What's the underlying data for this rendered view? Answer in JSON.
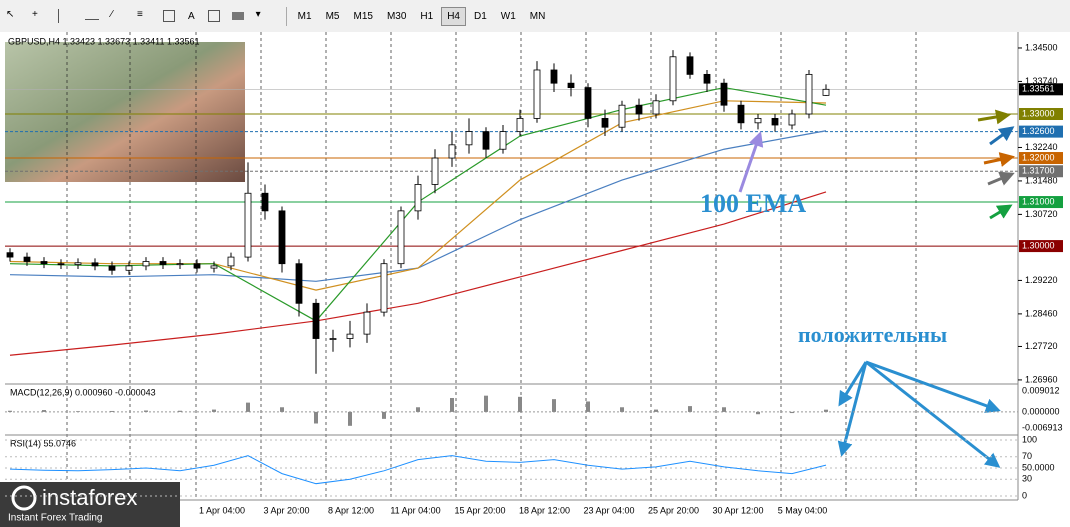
{
  "toolbar": {
    "text_tool": "A",
    "periods": [
      "M1",
      "M5",
      "M15",
      "M30",
      "H1",
      "H4",
      "D1",
      "W1",
      "MN"
    ],
    "active_period": "H4"
  },
  "chart_data": {
    "type": "candlestick",
    "title": "GBPUSD,H4  1.33423 1.33673 1.33411 1.33561",
    "candles": {
      "open": [
        1.2985,
        1.2975,
        1.2965,
        1.296,
        1.2958,
        1.2962,
        1.2955,
        1.2945,
        1.2955,
        1.2965,
        1.2958,
        1.296,
        1.295,
        1.2955,
        1.2975,
        1.312,
        1.308,
        1.296,
        1.287,
        1.279,
        1.279,
        1.28,
        1.285,
        1.296,
        1.308,
        1.314,
        1.32,
        1.323,
        1.326,
        1.322,
        1.326,
        1.329,
        1.34,
        1.337,
        1.336,
        1.329,
        1.327,
        1.332,
        1.33,
        1.333,
        1.343,
        1.339,
        1.337,
        1.332,
        1.328,
        1.329,
        1.3275,
        1.33,
        1.33423
      ],
      "high": [
        1.2995,
        1.2985,
        1.2975,
        1.297,
        1.2972,
        1.2972,
        1.2965,
        1.2965,
        1.2975,
        1.2975,
        1.297,
        1.297,
        1.2965,
        1.2985,
        1.319,
        1.314,
        1.309,
        1.297,
        1.288,
        1.281,
        1.283,
        1.287,
        1.297,
        1.309,
        1.316,
        1.322,
        1.326,
        1.329,
        1.327,
        1.3275,
        1.331,
        1.342,
        1.3415,
        1.339,
        1.337,
        1.331,
        1.333,
        1.3335,
        1.3345,
        1.3445,
        1.344,
        1.34,
        1.338,
        1.333,
        1.33,
        1.33,
        1.331,
        1.34,
        1.33673
      ],
      "low": [
        1.2965,
        1.2955,
        1.295,
        1.2948,
        1.2948,
        1.2945,
        1.2935,
        1.2935,
        1.2945,
        1.2948,
        1.2948,
        1.294,
        1.294,
        1.2945,
        1.2965,
        1.306,
        1.294,
        1.284,
        1.271,
        1.276,
        1.277,
        1.278,
        1.284,
        1.295,
        1.306,
        1.312,
        1.318,
        1.321,
        1.32,
        1.321,
        1.325,
        1.328,
        1.335,
        1.334,
        1.327,
        1.325,
        1.326,
        1.3285,
        1.329,
        1.332,
        1.338,
        1.335,
        1.3305,
        1.3265,
        1.3265,
        1.326,
        1.3265,
        1.329,
        1.33411
      ],
      "close": [
        1.2975,
        1.2965,
        1.296,
        1.2958,
        1.2962,
        1.2955,
        1.2945,
        1.2955,
        1.2965,
        1.2958,
        1.296,
        1.295,
        1.2955,
        1.2975,
        1.312,
        1.308,
        1.296,
        1.287,
        1.279,
        1.279,
        1.28,
        1.285,
        1.296,
        1.308,
        1.314,
        1.32,
        1.323,
        1.326,
        1.322,
        1.326,
        1.329,
        1.34,
        1.337,
        1.336,
        1.329,
        1.327,
        1.332,
        1.33,
        1.333,
        1.343,
        1.339,
        1.337,
        1.332,
        1.328,
        1.329,
        1.3275,
        1.33,
        1.339,
        1.33561
      ]
    },
    "ylim": [
      1.2689,
      1.3484
    ],
    "yticks": [
      {
        "value": 1.345,
        "label": "1.34500"
      },
      {
        "value": 1.3374,
        "label": "1.33740"
      },
      {
        "value": 1.3224,
        "label": "1.32240"
      },
      {
        "value": 1.3148,
        "label": "1.31480"
      },
      {
        "value": 1.3072,
        "label": "1.30720"
      },
      {
        "value": 1.2922,
        "label": "1.29220"
      },
      {
        "value": 1.2846,
        "label": "1.28460"
      },
      {
        "value": 1.2772,
        "label": "1.27720"
      },
      {
        "value": 1.2696,
        "label": "1.26960"
      }
    ],
    "current_price": {
      "value": 1.33561,
      "label": "1.33561"
    },
    "levels": [
      {
        "value": 1.33,
        "label": "1.33000",
        "color": "#808000",
        "dashed": false
      },
      {
        "value": 1.326,
        "label": "1.32600",
        "color": "#1f6fb0",
        "dashed": true
      },
      {
        "value": 1.32,
        "label": "1.32000",
        "color": "#c86400",
        "dashed": false
      },
      {
        "value": 1.317,
        "label": "1.31700",
        "color": "#707070",
        "dashed": true
      },
      {
        "value": 1.31,
        "label": "1.31000",
        "color": "#14a040",
        "dashed": false
      },
      {
        "value": 1.3,
        "label": "1.30000",
        "color": "#8b0000",
        "dashed": false
      }
    ],
    "moving_averages": [
      {
        "color": "#c81e1e",
        "x": [
          0,
          6,
          12,
          18,
          24,
          30,
          36,
          42,
          48
        ],
        "values": [
          1.2752,
          1.2775,
          1.28,
          1.283,
          1.287,
          1.293,
          1.299,
          1.305,
          1.3123
        ]
      },
      {
        "color": "#4a7fc0",
        "x": [
          0,
          6,
          12,
          18,
          24,
          30,
          36,
          42,
          48
        ],
        "values": [
          1.2935,
          1.293,
          1.2935,
          1.292,
          1.295,
          1.306,
          1.315,
          1.322,
          1.3262
        ]
      },
      {
        "color": "#d09020",
        "x": [
          0,
          6,
          12,
          18,
          24,
          30,
          36,
          42,
          48
        ],
        "values": [
          1.2965,
          1.296,
          1.296,
          1.29,
          1.295,
          1.315,
          1.328,
          1.333,
          1.3325
        ]
      },
      {
        "color": "#2a9a2a",
        "x": [
          0,
          6,
          12,
          18,
          24,
          30,
          36,
          42,
          48
        ],
        "values": [
          1.296,
          1.2955,
          1.296,
          1.283,
          1.31,
          1.325,
          1.331,
          1.336,
          1.332
        ]
      }
    ],
    "xticks": [
      "1 Apr 04:00",
      "3 Apr 20:00",
      "8 Apr 12:00",
      "11 Apr 04:00",
      "15 Apr 20:00",
      "18 Apr 12:00",
      "23 Apr 04:00",
      "25 Apr 20:00",
      "30 Apr 12:00",
      "5 May 04:00"
    ],
    "annotations": [
      "100 EMA",
      "положительны"
    ]
  },
  "macd": {
    "label": "MACD(12,26,9) 0.000960 -0.000043",
    "ylim": [
      -0.0091,
      0.0116
    ],
    "yticks": [
      {
        "value": 0.009012,
        "label": "0.009012"
      },
      {
        "value": 0,
        "label": "0.000000"
      },
      {
        "value": -0.006913,
        "label": "-0.006913"
      }
    ],
    "values": [
      0.0005,
      0.0008,
      0.0003,
      0.0004,
      0.0006,
      0.0005,
      0.001,
      0.004,
      0.002,
      -0.005,
      -0.006,
      -0.003,
      0.002,
      0.006,
      0.007,
      0.0065,
      0.0055,
      0.0045,
      0.002,
      0.001,
      0.0025,
      0.002,
      -0.001,
      -0.0005,
      0.00096
    ]
  },
  "rsi": {
    "label": "RSI(14) 55.0746",
    "ylim": [
      0,
      100
    ],
    "yticks": [
      100,
      70,
      {
        "value": 50,
        "label": "50.0000"
      },
      30,
      0
    ],
    "values": [
      48,
      46,
      45,
      47,
      50,
      45,
      55,
      72,
      40,
      22,
      30,
      45,
      65,
      72,
      62,
      60,
      65,
      55,
      48,
      52,
      62,
      52,
      45,
      40,
      55.0746
    ]
  },
  "logo": {
    "name": "instaforex",
    "tagline": "Instant Forex Trading"
  }
}
